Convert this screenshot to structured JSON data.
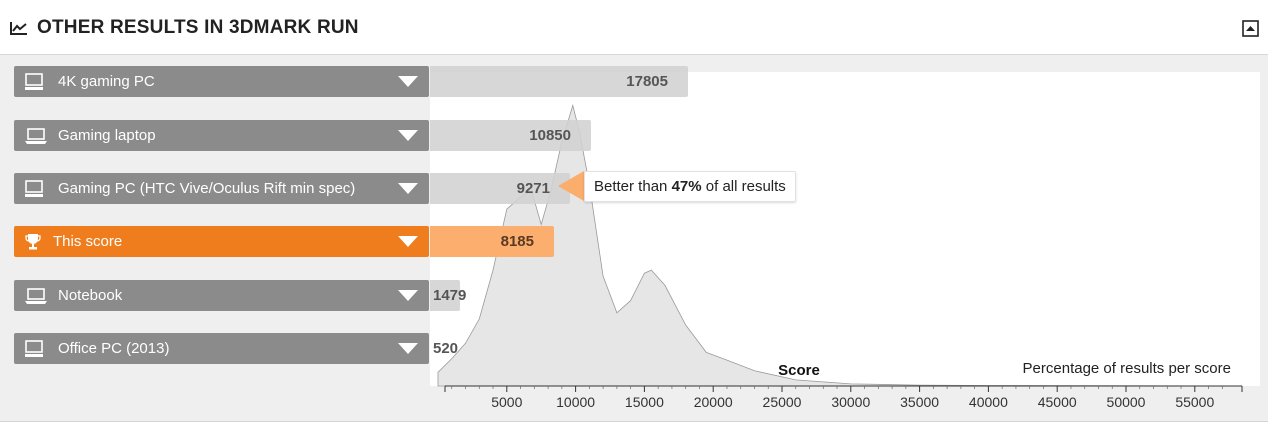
{
  "header": {
    "title": "OTHER RESULTS IN 3DMARK RUN",
    "title_icon": "line-chart-icon",
    "collapse_icon": "collapse-up-icon"
  },
  "rows": [
    {
      "label": "4K gaming PC",
      "value": "17805",
      "icon": "desktop-icon"
    },
    {
      "label": "Gaming laptop",
      "value": "10850",
      "icon": "laptop-icon"
    },
    {
      "label": "Gaming PC (HTC Vive/Oculus Rift min spec)",
      "value": "9271",
      "icon": "desktop-icon"
    },
    {
      "label": "This score",
      "value": "8185",
      "icon": "trophy-icon"
    },
    {
      "label": "Notebook",
      "value": "1479",
      "icon": "laptop-icon"
    },
    {
      "label": "Office PC (2013)",
      "value": "520",
      "icon": "desktop-icon"
    }
  ],
  "callout": {
    "prefix": "Better than ",
    "percent": "47%",
    "suffix": " of all results"
  },
  "colors": {
    "row_bg": "#8b8b8b",
    "highlight": "#f07d1d",
    "highlight_bar": "#fbae6e",
    "bar": "#d2d2d2",
    "distribution": "#e6e6e6"
  },
  "chart_data": {
    "type": "area",
    "xlabel": "Score",
    "ylabel": "Percentage of results per score",
    "xlim": [
      0,
      58000
    ],
    "x_ticks": [
      5000,
      10000,
      15000,
      20000,
      25000,
      30000,
      35000,
      40000,
      45000,
      50000,
      55000
    ],
    "x": [
      0,
      1000,
      2000,
      3000,
      4000,
      5000,
      6000,
      6800,
      7500,
      8200,
      9000,
      9800,
      10300,
      11000,
      12000,
      13000,
      14000,
      15000,
      15500,
      16500,
      18000,
      19500,
      21000,
      23000,
      26000,
      30000,
      35000,
      40000,
      58000
    ],
    "y": [
      4.5,
      9.0,
      14.0,
      22.0,
      38.0,
      58.0,
      62.0,
      64.0,
      53.0,
      64.0,
      80.0,
      92.0,
      83.0,
      66.0,
      36.0,
      24.0,
      28.0,
      37.0,
      38.0,
      33.0,
      20.0,
      11.0,
      8.5,
      5.0,
      2.0,
      0.7,
      0.3,
      0.15,
      0.0
    ],
    "grid": false,
    "markers": [
      {
        "name": "4K gaming PC",
        "x": 17805
      },
      {
        "name": "Gaming laptop",
        "x": 10850
      },
      {
        "name": "Gaming PC (HTC Vive/Oculus Rift min spec)",
        "x": 9271
      },
      {
        "name": "This score",
        "x": 8185
      },
      {
        "name": "Notebook",
        "x": 1479
      },
      {
        "name": "Office PC (2013)",
        "x": 520
      }
    ]
  }
}
